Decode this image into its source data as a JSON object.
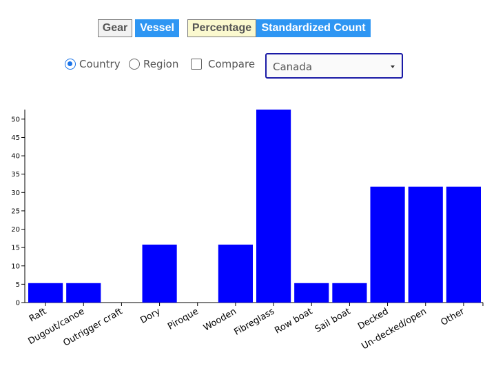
{
  "toggles": {
    "gear_label": "Gear",
    "vessel_label": "Vessel",
    "percentage_label": "Percentage",
    "standardized_label": "Standardized Count"
  },
  "options": {
    "country_label": "Country",
    "region_label": "Region",
    "compare_label": "Compare",
    "selected_mode": "Country",
    "compare_checked": false
  },
  "select": {
    "value": "Canada"
  },
  "colors": {
    "bar": "#0000ff",
    "button_active": "#2e96f3",
    "button_inactive_percentage": "#fbf9cf",
    "button_inactive_gear": "#f2f2f2",
    "select_border": "#1a1aa6"
  },
  "chart_data": {
    "type": "bar",
    "categories": [
      "Raft",
      "Dugout/canoe",
      "Outrigger craft",
      "Dory",
      "Piroque",
      "Wooden",
      "Fibreglass",
      "Row boat",
      "Sail boat",
      "Decked",
      "Un-decked/open",
      "Other"
    ],
    "values": [
      5.3,
      5.3,
      0,
      15.8,
      0,
      15.8,
      52.6,
      5.3,
      5.3,
      31.6,
      31.6,
      31.6
    ],
    "yticks": [
      0,
      5,
      10,
      15,
      20,
      25,
      30,
      35,
      40,
      45,
      50
    ],
    "ylim": [
      0,
      52.6
    ],
    "xlabel": "",
    "ylabel": "",
    "title": "",
    "grid": false
  }
}
